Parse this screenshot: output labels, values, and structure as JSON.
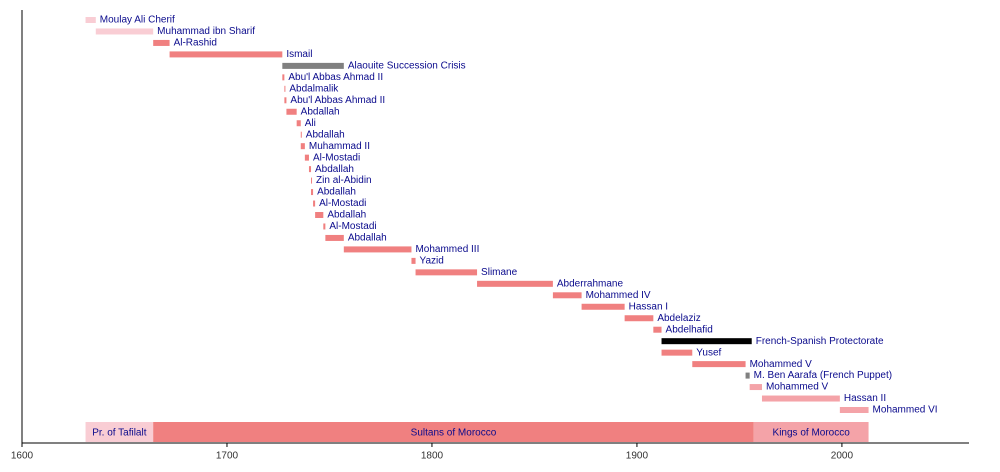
{
  "chart_data": {
    "type": "timeline",
    "xlim": [
      1600,
      2062
    ],
    "xticks": [
      1600,
      1700,
      1800,
      1900,
      2000
    ],
    "bars": [
      {
        "name": "Moulay Ali Cherif",
        "start": 1631,
        "end": 1636,
        "color": "#f9cdd4"
      },
      {
        "name": "Muhammad ibn Sharif",
        "start": 1636,
        "end": 1664,
        "color": "#f9cdd4"
      },
      {
        "name": "Al-Rashid",
        "start": 1664,
        "end": 1672,
        "color": "#f08080"
      },
      {
        "name": "Ismail",
        "start": 1672,
        "end": 1727,
        "color": "#f08080"
      },
      {
        "name": "Alaouite Succession Crisis",
        "start": 1727,
        "end": 1757,
        "color": "#808080"
      },
      {
        "name": "Abu'l Abbas Ahmad II",
        "start": 1727,
        "end": 1728,
        "color": "#f08080"
      },
      {
        "name": "Abdalmalik",
        "start": 1728,
        "end": 1728.5,
        "color": "#f08080"
      },
      {
        "name": "Abu'l Abbas Ahmad II",
        "start": 1728,
        "end": 1729,
        "color": "#f08080"
      },
      {
        "name": "Abdallah",
        "start": 1729,
        "end": 1734,
        "color": "#f08080"
      },
      {
        "name": "Ali",
        "start": 1734,
        "end": 1736,
        "color": "#f08080"
      },
      {
        "name": "Abdallah",
        "start": 1736,
        "end": 1736.5,
        "color": "#f08080"
      },
      {
        "name": "Muhammad II",
        "start": 1736,
        "end": 1738,
        "color": "#f08080"
      },
      {
        "name": "Al-Mostadi",
        "start": 1738,
        "end": 1740,
        "color": "#f08080"
      },
      {
        "name": "Abdallah",
        "start": 1740,
        "end": 1741,
        "color": "#f08080"
      },
      {
        "name": "Zin al-Abidin",
        "start": 1741,
        "end": 1741.5,
        "color": "#f08080"
      },
      {
        "name": "Abdallah",
        "start": 1741,
        "end": 1742,
        "color": "#f08080"
      },
      {
        "name": "Al-Mostadi",
        "start": 1742,
        "end": 1743,
        "color": "#f08080"
      },
      {
        "name": "Abdallah",
        "start": 1743,
        "end": 1747,
        "color": "#f08080"
      },
      {
        "name": "Al-Mostadi",
        "start": 1747,
        "end": 1748,
        "color": "#f08080"
      },
      {
        "name": "Abdallah",
        "start": 1748,
        "end": 1757,
        "color": "#f08080"
      },
      {
        "name": "Mohammed III",
        "start": 1757,
        "end": 1790,
        "color": "#f08080"
      },
      {
        "name": "Yazid",
        "start": 1790,
        "end": 1792,
        "color": "#f08080"
      },
      {
        "name": "Slimane",
        "start": 1792,
        "end": 1822,
        "color": "#f08080"
      },
      {
        "name": "Abderrahmane",
        "start": 1822,
        "end": 1859,
        "color": "#f08080"
      },
      {
        "name": "Mohammed IV",
        "start": 1859,
        "end": 1873,
        "color": "#f08080"
      },
      {
        "name": "Hassan I",
        "start": 1873,
        "end": 1894,
        "color": "#f08080"
      },
      {
        "name": "Abdelaziz",
        "start": 1894,
        "end": 1908,
        "color": "#f08080"
      },
      {
        "name": "Abdelhafid",
        "start": 1908,
        "end": 1912,
        "color": "#f08080"
      },
      {
        "name": "French-Spanish Protectorate",
        "start": 1912,
        "end": 1956,
        "color": "#000000"
      },
      {
        "name": "Yusef",
        "start": 1912,
        "end": 1927,
        "color": "#f08080"
      },
      {
        "name": "Mohammed V",
        "start": 1927,
        "end": 1953,
        "color": "#f08080"
      },
      {
        "name": "M. Ben Aarafa (French Puppet)",
        "start": 1953,
        "end": 1955,
        "color": "#808080"
      },
      {
        "name": "Mohammed V",
        "start": 1955,
        "end": 1961,
        "color": "#f4a3a8"
      },
      {
        "name": "Hassan II",
        "start": 1961,
        "end": 1999,
        "color": "#f4a3a8"
      },
      {
        "name": "Mohammed VI",
        "start": 1999,
        "end": 2013,
        "color": "#f4a3a8"
      }
    ],
    "eras": [
      {
        "name": "Pr. of Tafilalt",
        "start": 1631,
        "end": 1664,
        "color": "#f9cdd4"
      },
      {
        "name": "Sultans of Morocco",
        "start": 1664,
        "end": 1957,
        "color": "#f08080"
      },
      {
        "name": "Kings of Morocco",
        "start": 1957,
        "end": 2013,
        "color": "#f4a3a8"
      }
    ]
  }
}
